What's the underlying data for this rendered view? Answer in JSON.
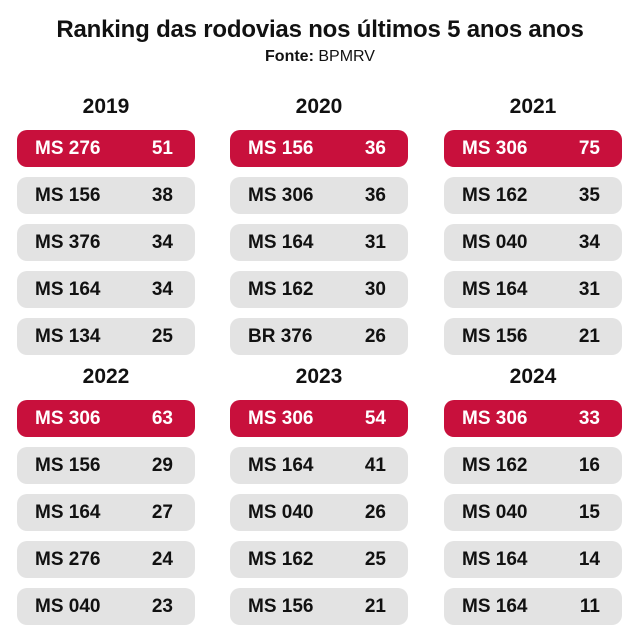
{
  "title": "Ranking das rodovias nos últimos 5 anos anos",
  "source": {
    "label": "Fonte:",
    "value": "BPMRV"
  },
  "colors": {
    "highlight": "#c8103c",
    "row_bg": "#e3e3e3",
    "highlight_text": "#ffffff"
  },
  "chart_data": {
    "type": "table",
    "title": "Ranking das rodovias nos últimos 5 anos anos",
    "years": [
      {
        "year": "2019",
        "rows": [
          {
            "road": "MS 276",
            "value": "51"
          },
          {
            "road": "MS 156",
            "value": "38"
          },
          {
            "road": "MS 376",
            "value": "34"
          },
          {
            "road": "MS 164",
            "value": "34"
          },
          {
            "road": "MS 134",
            "value": "25"
          }
        ]
      },
      {
        "year": "2020",
        "rows": [
          {
            "road": "MS 156",
            "value": "36"
          },
          {
            "road": "MS 306",
            "value": "36"
          },
          {
            "road": "MS 164",
            "value": "31"
          },
          {
            "road": "MS 162",
            "value": "30"
          },
          {
            "road": "BR 376",
            "value": "26"
          }
        ]
      },
      {
        "year": "2021",
        "rows": [
          {
            "road": "MS 306",
            "value": "75"
          },
          {
            "road": "MS 162",
            "value": "35"
          },
          {
            "road": "MS 040",
            "value": "34"
          },
          {
            "road": "MS 164",
            "value": "31"
          },
          {
            "road": "MS 156",
            "value": "21"
          }
        ]
      },
      {
        "year": "2022",
        "rows": [
          {
            "road": "MS 306",
            "value": "63"
          },
          {
            "road": "MS 156",
            "value": "29"
          },
          {
            "road": "MS 164",
            "value": "27"
          },
          {
            "road": "MS 276",
            "value": "24"
          },
          {
            "road": "MS 040",
            "value": "23"
          }
        ]
      },
      {
        "year": "2023",
        "rows": [
          {
            "road": "MS 306",
            "value": "54"
          },
          {
            "road": "MS 164",
            "value": "41"
          },
          {
            "road": "MS 040",
            "value": "26"
          },
          {
            "road": "MS 162",
            "value": "25"
          },
          {
            "road": "MS 156",
            "value": "21"
          }
        ]
      },
      {
        "year": "2024",
        "rows": [
          {
            "road": "MS 306",
            "value": "33"
          },
          {
            "road": "MS 162",
            "value": "16"
          },
          {
            "road": "MS 040",
            "value": "15"
          },
          {
            "road": "MS 164",
            "value": "14"
          },
          {
            "road": "MS 164",
            "value": "11"
          }
        ]
      }
    ]
  }
}
